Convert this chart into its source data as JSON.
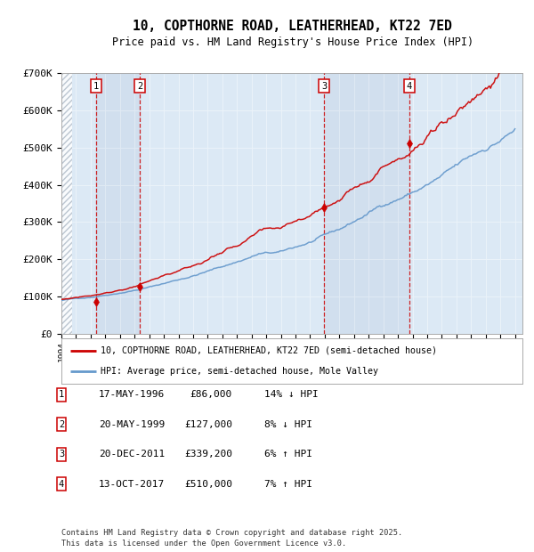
{
  "title": "10, COPTHORNE ROAD, LEATHERHEAD, KT22 7ED",
  "subtitle": "Price paid vs. HM Land Registry's House Price Index (HPI)",
  "x_start_year": 1994,
  "x_end_year": 2025,
  "y_min": 0,
  "y_max": 700000,
  "y_ticks": [
    0,
    100000,
    200000,
    300000,
    400000,
    500000,
    600000,
    700000
  ],
  "y_tick_labels": [
    "£0",
    "£100K",
    "£200K",
    "£300K",
    "£400K",
    "£500K",
    "£600K",
    "£700K"
  ],
  "transactions": [
    {
      "num": 1,
      "date": "17-MAY-1996",
      "year": 1996.38,
      "price": 86000,
      "hpi_rel": "14% ↓ HPI"
    },
    {
      "num": 2,
      "date": "20-MAY-1999",
      "year": 1999.38,
      "price": 127000,
      "hpi_rel": "8% ↓ HPI"
    },
    {
      "num": 3,
      "date": "20-DEC-2011",
      "year": 2011.97,
      "price": 339200,
      "hpi_rel": "6% ↑ HPI"
    },
    {
      "num": 4,
      "date": "13-OCT-2017",
      "year": 2017.79,
      "price": 510000,
      "hpi_rel": "7% ↑ HPI"
    }
  ],
  "legend_line1": "10, COPTHORNE ROAD, LEATHERHEAD, KT22 7ED (semi-detached house)",
  "legend_line2": "HPI: Average price, semi-detached house, Mole Valley",
  "footer": "Contains HM Land Registry data © Crown copyright and database right 2025.\nThis data is licensed under the Open Government Licence v3.0.",
  "hpi_color": "#6699cc",
  "price_color": "#cc0000",
  "bg_color": "#dce9f5",
  "dashed_line_color": "#cc0000",
  "marker_color": "#cc0000"
}
